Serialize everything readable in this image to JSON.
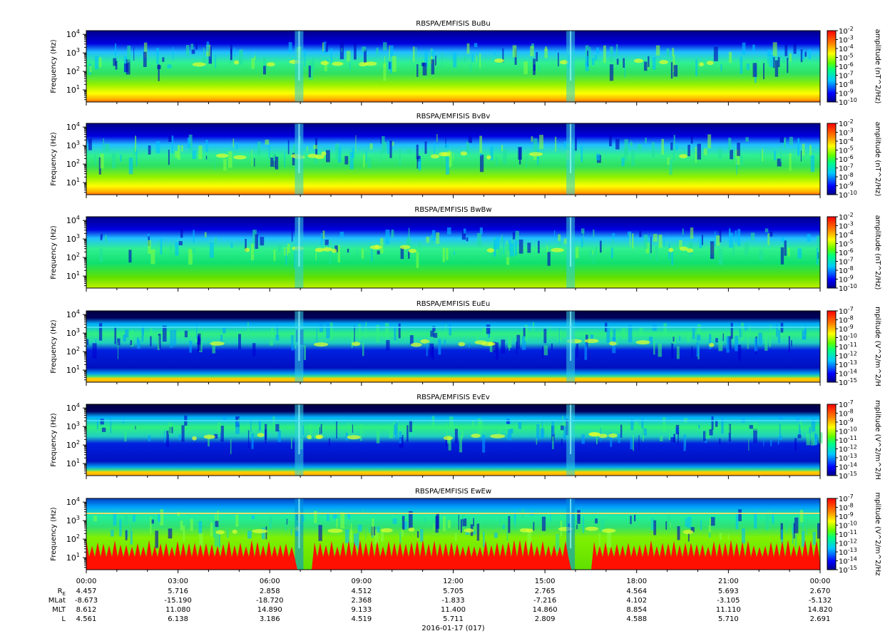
{
  "panels": [
    {
      "title": "RBSPA/EMFISIS  BuBu",
      "ylabel": "Frequency (Hz)",
      "cbar_label": "amplitude (nT^2/Hz)",
      "cbar_exp_range": [
        -10,
        -2
      ],
      "kind": "B"
    },
    {
      "title": "RBSPA/EMFISIS  BvBv",
      "ylabel": "Frequency (Hz)",
      "cbar_label": "amplitude (nT^2/Hz)",
      "cbar_exp_range": [
        -10,
        -2
      ],
      "kind": "B"
    },
    {
      "title": "RBSPA/EMFISIS  BwBw",
      "ylabel": "Frequency (Hz)",
      "cbar_label": "amplitude (nT^2/Hz)",
      "cbar_exp_range": [
        -10,
        -2
      ],
      "kind": "Bw"
    },
    {
      "title": "RBSPA/EMFISIS  EuEu",
      "ylabel": "Frequency (Hz)",
      "cbar_label": "mplitude (V^2/m^2/H",
      "cbar_exp_range": [
        -15,
        -7
      ],
      "kind": "E"
    },
    {
      "title": "RBSPA/EMFISIS  EvEv",
      "ylabel": "Frequency (Hz)",
      "cbar_label": "mplitude (V^2/m^2/H",
      "cbar_exp_range": [
        -15,
        -7
      ],
      "kind": "E"
    },
    {
      "title": "RBSPA/EMFISIS  EwEw",
      "ylabel": "Frequency (Hz)",
      "cbar_label": "mplitude (V^2/m^2/Hz",
      "cbar_exp_range": [
        -15,
        -7
      ],
      "kind": "Ew"
    }
  ],
  "chart_data": {
    "type": "heatmap",
    "x_tick_labels": [
      "00:00",
      "03:00",
      "06:00",
      "09:00",
      "12:00",
      "15:00",
      "18:00",
      "21:00",
      "00:00"
    ],
    "y_scale": "log",
    "y_tick_exponents": [
      1,
      2,
      3,
      4
    ],
    "date_label": "2016-01-17 (017)",
    "ephemeris": [
      {
        "label": "R",
        "sub": "E",
        "values": [
          "4.457",
          "5.716",
          "2.858",
          "4.512",
          "5.705",
          "2.765",
          "4.564",
          "5.693",
          "2.670"
        ]
      },
      {
        "label": "MLat",
        "values": [
          "-8.673",
          "-15.190",
          "-18.720",
          "2.368",
          "-1.833",
          "-7.216",
          "4.102",
          "-3.105",
          "-5.132"
        ]
      },
      {
        "label": "MLT",
        "values": [
          "8.612",
          "11.080",
          "14.890",
          "9.133",
          "11.400",
          "14.860",
          "8.854",
          "11.110",
          "14.820"
        ]
      },
      {
        "label": "L",
        "values": [
          "4.561",
          "6.138",
          "3.186",
          "4.519",
          "5.711",
          "2.809",
          "4.588",
          "5.710",
          "2.691"
        ]
      }
    ]
  }
}
